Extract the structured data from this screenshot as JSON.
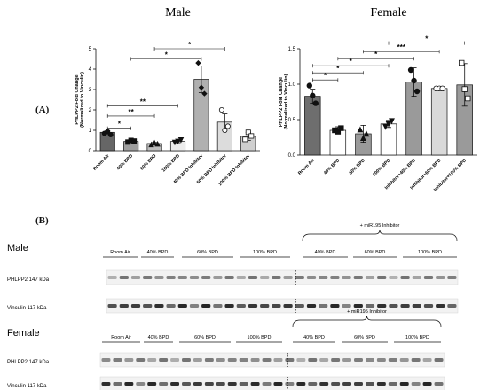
{
  "panel_labels": {
    "a": "(A)",
    "b": "(B)"
  },
  "chart_data": [
    {
      "type": "bar",
      "title": "Male",
      "ylabel": "PHLPP2 Fold Change",
      "ylabel2": "(Normalized to Vinculin)",
      "ylim": [
        0,
        5
      ],
      "yticks": [
        0,
        1,
        2,
        3,
        4,
        5
      ],
      "categories": [
        "Room Air",
        "40% BPD",
        "60% BPD",
        "100% BPD",
        "40% BPD Inhibitor",
        "60% BPD Inhibitor",
        "100% BPD Inhibitor"
      ],
      "values": [
        0.9,
        0.45,
        0.35,
        0.45,
        3.5,
        1.4,
        0.7
      ],
      "errors": [
        0.08,
        0.05,
        0.05,
        0.06,
        0.65,
        0.4,
        0.2
      ],
      "bar_colors": [
        "#666666",
        "#9e9e9e",
        "#bdbdbd",
        "#ececec",
        "#b0b0b0",
        "#dcdcdc",
        "#cfcfcf"
      ],
      "markers": [
        "circle",
        "square",
        "triangle",
        "triangle-down",
        "diamond",
        "circle-open",
        "square-open"
      ],
      "points": [
        [
          0.85,
          0.93,
          0.78
        ],
        [
          0.42,
          0.5,
          0.47
        ],
        [
          0.3,
          0.38,
          0.33
        ],
        [
          0.4,
          0.45,
          0.52
        ],
        [
          4.3,
          3.1,
          2.8
        ],
        [
          2.0,
          1.0,
          1.2
        ],
        [
          0.55,
          0.9,
          0.72
        ]
      ],
      "significance": [
        {
          "from": 0,
          "to": 1,
          "label": "*",
          "y": 1.1
        },
        {
          "from": 0,
          "to": 2,
          "label": "**",
          "y": 1.7
        },
        {
          "from": 0,
          "to": 3,
          "label": "**",
          "y": 2.2
        },
        {
          "from": 1,
          "to": 4,
          "label": "*",
          "y": 4.5
        },
        {
          "from": 2,
          "to": 5,
          "label": "*",
          "y": 5.0
        }
      ]
    },
    {
      "type": "bar",
      "title": "Female",
      "ylabel": "PHLPP2 Fold Change",
      "ylabel2": "(Normalized to Vinculin)",
      "ylim": [
        0,
        1.5
      ],
      "yticks": [
        "0.0",
        "0.5",
        "1.0",
        "1.5"
      ],
      "categories": [
        "Room Air",
        "40% BPD",
        "60% BPD",
        "100% BPD",
        "Inhibitor+40% BPD",
        "Inhibitor+60% BPD",
        "Inhibitor+100% BPD"
      ],
      "values": [
        0.83,
        0.35,
        0.3,
        0.44,
        1.03,
        0.94,
        0.99
      ],
      "errors": [
        0.1,
        0.05,
        0.12,
        0.05,
        0.2,
        0.02,
        0.3
      ],
      "bar_colors": [
        "#6e6e6e",
        "#ffffff",
        "#9a9a9a",
        "#ffffff",
        "#9a9a9a",
        "#d9d9d9",
        "#9a9a9a"
      ],
      "markers": [
        "circle",
        "square",
        "triangle",
        "triangle-down",
        "circle",
        "circle-open",
        "square-open"
      ],
      "points": [
        [
          0.98,
          0.84,
          0.73
        ],
        [
          0.35,
          0.33,
          0.38
        ],
        [
          0.36,
          0.24,
          0.3
        ],
        [
          0.4,
          0.44,
          0.48
        ],
        [
          1.2,
          1.05,
          0.9
        ],
        [
          0.94,
          0.94,
          0.94
        ],
        [
          1.3,
          0.93,
          0.8
        ]
      ],
      "significance": [
        {
          "from": 0,
          "to": 1,
          "label": "*",
          "y": 1.06
        },
        {
          "from": 0,
          "to": 2,
          "label": "*",
          "y": 1.16
        },
        {
          "from": 0,
          "to": 3,
          "label": "*",
          "y": 1.26
        },
        {
          "from": 1,
          "to": 4,
          "label": "*",
          "y": 1.36
        },
        {
          "from": 2,
          "to": 5,
          "label": "***",
          "y": 1.46
        },
        {
          "from": 3,
          "to": 6,
          "label": "*",
          "y": 1.58
        }
      ]
    }
  ],
  "blots": [
    {
      "sex": "Male",
      "inhibitor_label": "+ miR195 Inhibitor",
      "groups": [
        "Room Air",
        "40% BPD",
        "60% BPD",
        "100% BPD",
        "40% BPD",
        "60% BPD",
        "100% BPD"
      ],
      "row1_label": "PHLPP2  147 kDa",
      "row2_label": "Vinculin  117 kDa"
    },
    {
      "sex": "Female",
      "inhibitor_label": "+ miR195 Inhibitor",
      "groups": [
        "Room Air",
        "40% BPD",
        "60% BPD",
        "100% BPD",
        "40% BPD",
        "60% BPD",
        "100% BPD"
      ],
      "row1_label": "PHLPP2  147 kDa",
      "row2_label": "Vinculin  117 kDa"
    }
  ]
}
